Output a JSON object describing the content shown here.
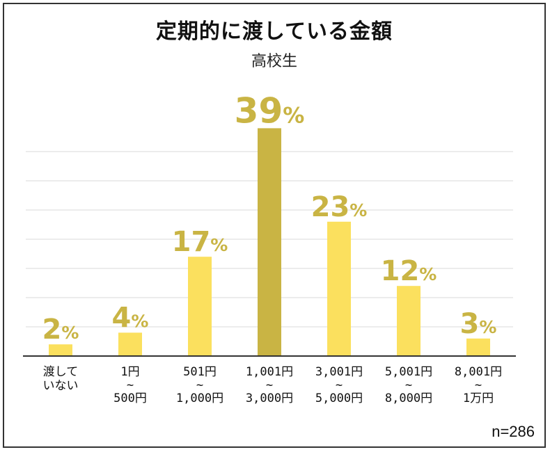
{
  "title": "定期的に渡している金額",
  "subtitle": "高校生",
  "note": "n=286",
  "colors": {
    "bar": "#fbe05e",
    "highlight": "#c9b444",
    "label": "#c9b444",
    "grid": "#d9d9d9",
    "axis": "#333333"
  },
  "chart_data": {
    "type": "bar",
    "title": "定期的に渡している金額",
    "subtitle": "高校生",
    "xlabel": "",
    "ylabel": "",
    "ylim": [
      0,
      40
    ],
    "grid": true,
    "unit": "%",
    "categories": [
      [
        "渡して",
        "いない"
      ],
      [
        "1円",
        "~",
        "500円"
      ],
      [
        "501円",
        "~",
        "1,000円"
      ],
      [
        "1,001円",
        "~",
        "3,000円"
      ],
      [
        "3,001円",
        "~",
        "5,000円"
      ],
      [
        "5,001円",
        "~",
        "8,000円"
      ],
      [
        "8,001円",
        "~",
        "1万円"
      ]
    ],
    "values": [
      2,
      4,
      17,
      39,
      23,
      12,
      3
    ],
    "highlight_index": 3
  }
}
